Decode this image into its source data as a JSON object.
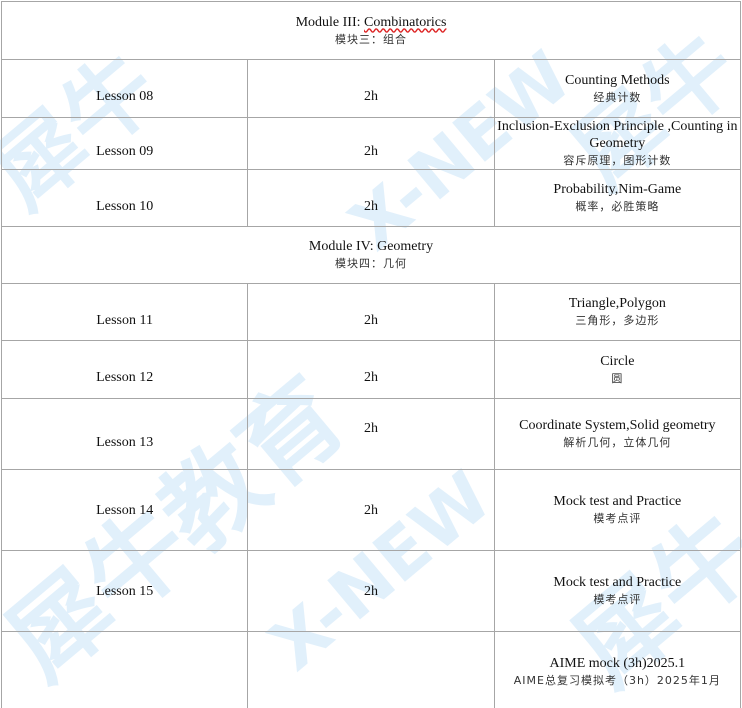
{
  "watermark": {
    "text_cn": "犀牛教育",
    "text_en": "X-NEW"
  },
  "modules": [
    {
      "title_prefix": "Module III: ",
      "title_word": "Combinatorics",
      "title_cn": "模块三：组合"
    },
    {
      "title": "Module IV: Geometry",
      "title_cn": "模块四：几何"
    }
  ],
  "lessons": [
    {
      "label": "Lesson 08",
      "hours": "2h",
      "topic": "Counting Methods",
      "topic_cn": "经典计数"
    },
    {
      "label": "Lesson 09",
      "hours": "2h",
      "topic": "Inclusion-Exclusion Principle ,Counting in Geometry",
      "topic_cn": "容斥原理，图形计数"
    },
    {
      "label": "Lesson 10",
      "hours": "2h",
      "topic": "Probability,Nim-Game",
      "topic_cn": "概率，必胜策略"
    },
    {
      "label": "Lesson 11",
      "hours": "2h",
      "topic": "Triangle,Polygon",
      "topic_cn": "三角形，多边形"
    },
    {
      "label": "Lesson 12",
      "hours": "2h",
      "topic": "Circle",
      "topic_cn": "圆"
    },
    {
      "label": "Lesson 13",
      "hours": "2h",
      "topic": "Coordinate System,Solid geometry",
      "topic_cn": "解析几何，立体几何"
    },
    {
      "label": "Lesson 14",
      "hours": "2h",
      "topic": "Mock test and Practice",
      "topic_cn": "模考点评"
    },
    {
      "label": "Lesson 15",
      "hours": "2h",
      "topic": "Mock test and Practice",
      "topic_cn": "模考点评"
    }
  ],
  "final": {
    "topic": "AIME mock (3h)2025.1",
    "topic_cn": "AIME总复习模拟考（3h）2025年1月"
  }
}
